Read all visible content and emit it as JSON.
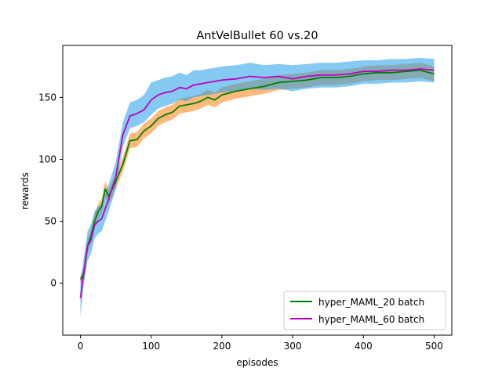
{
  "chart_data": {
    "type": "line",
    "title": "AntVelBullet 60 vs.20",
    "xlabel": "episodes",
    "ylabel": "rewards",
    "xlim": [
      -25,
      525
    ],
    "ylim": [
      -42,
      192
    ],
    "x_ticks": [
      0,
      100,
      200,
      300,
      400,
      500
    ],
    "x_tick_labels": [
      "0",
      "100",
      "200",
      "300",
      "400",
      "500"
    ],
    "y_ticks": [
      0,
      50,
      100,
      150
    ],
    "y_tick_labels": [
      "0",
      "50",
      "100",
      "150"
    ],
    "grid": false,
    "legend_position": "bottom-right",
    "x": [
      0,
      5,
      10,
      15,
      20,
      25,
      30,
      35,
      40,
      50,
      60,
      70,
      80,
      90,
      100,
      110,
      120,
      130,
      140,
      150,
      160,
      170,
      180,
      190,
      200,
      220,
      240,
      260,
      280,
      300,
      320,
      340,
      360,
      380,
      400,
      420,
      440,
      460,
      480,
      500
    ],
    "series": [
      {
        "name": "hyper_MAML_20 batch",
        "color": "#008000",
        "band_color": "#ff7f0e",
        "values": [
          3,
          8,
          30,
          38,
          50,
          58,
          62,
          76,
          70,
          82,
          96,
          115,
          116,
          123,
          127,
          133,
          136,
          138,
          143,
          144,
          145,
          147,
          150,
          148,
          152,
          155,
          157,
          159,
          162,
          163,
          164,
          166,
          166,
          167,
          169,
          170,
          170,
          171,
          172,
          169
        ],
        "band_lower": [
          0,
          3,
          24,
          32,
          44,
          52,
          56,
          70,
          64,
          76,
          90,
          109,
          110,
          117,
          121,
          127,
          130,
          132,
          137,
          138,
          139,
          141,
          144,
          142,
          146,
          149,
          151,
          153,
          156,
          157,
          158,
          160,
          160,
          161,
          163,
          164,
          164,
          165,
          166,
          163
        ],
        "band_upper": [
          6,
          13,
          36,
          44,
          56,
          64,
          68,
          82,
          76,
          88,
          102,
          121,
          122,
          129,
          133,
          139,
          142,
          144,
          149,
          150,
          151,
          153,
          156,
          154,
          158,
          161,
          163,
          165,
          168,
          169,
          170,
          172,
          172,
          173,
          175,
          176,
          176,
          177,
          178,
          175
        ]
      },
      {
        "name": "hyper_MAML_60 batch",
        "color": "#bf00bf",
        "band_color": "#1f9fe8",
        "values": [
          -12,
          10,
          30,
          35,
          47,
          50,
          52,
          60,
          68,
          86,
          120,
          135,
          137,
          140,
          148,
          152,
          154,
          155,
          158,
          157,
          160,
          161,
          162,
          163,
          164,
          165,
          167,
          166,
          167,
          165,
          167,
          168,
          168,
          169,
          171,
          171,
          172,
          172,
          173,
          172
        ],
        "band_lower": [
          -27,
          0,
          18,
          24,
          36,
          40,
          42,
          50,
          58,
          76,
          110,
          125,
          127,
          130,
          136,
          141,
          143,
          145,
          148,
          147,
          150,
          151,
          152,
          153,
          154,
          155,
          157,
          156,
          157,
          155,
          157,
          158,
          158,
          159,
          161,
          161,
          162,
          162,
          163,
          162
        ],
        "band_upper": [
          2,
          22,
          42,
          48,
          58,
          62,
          64,
          72,
          80,
          98,
          130,
          146,
          148,
          152,
          162,
          164,
          166,
          167,
          170,
          168,
          172,
          172,
          173,
          174,
          175,
          176,
          178,
          176,
          177,
          176,
          177,
          178,
          178,
          179,
          180,
          180,
          181,
          181,
          182,
          181
        ]
      }
    ]
  }
}
